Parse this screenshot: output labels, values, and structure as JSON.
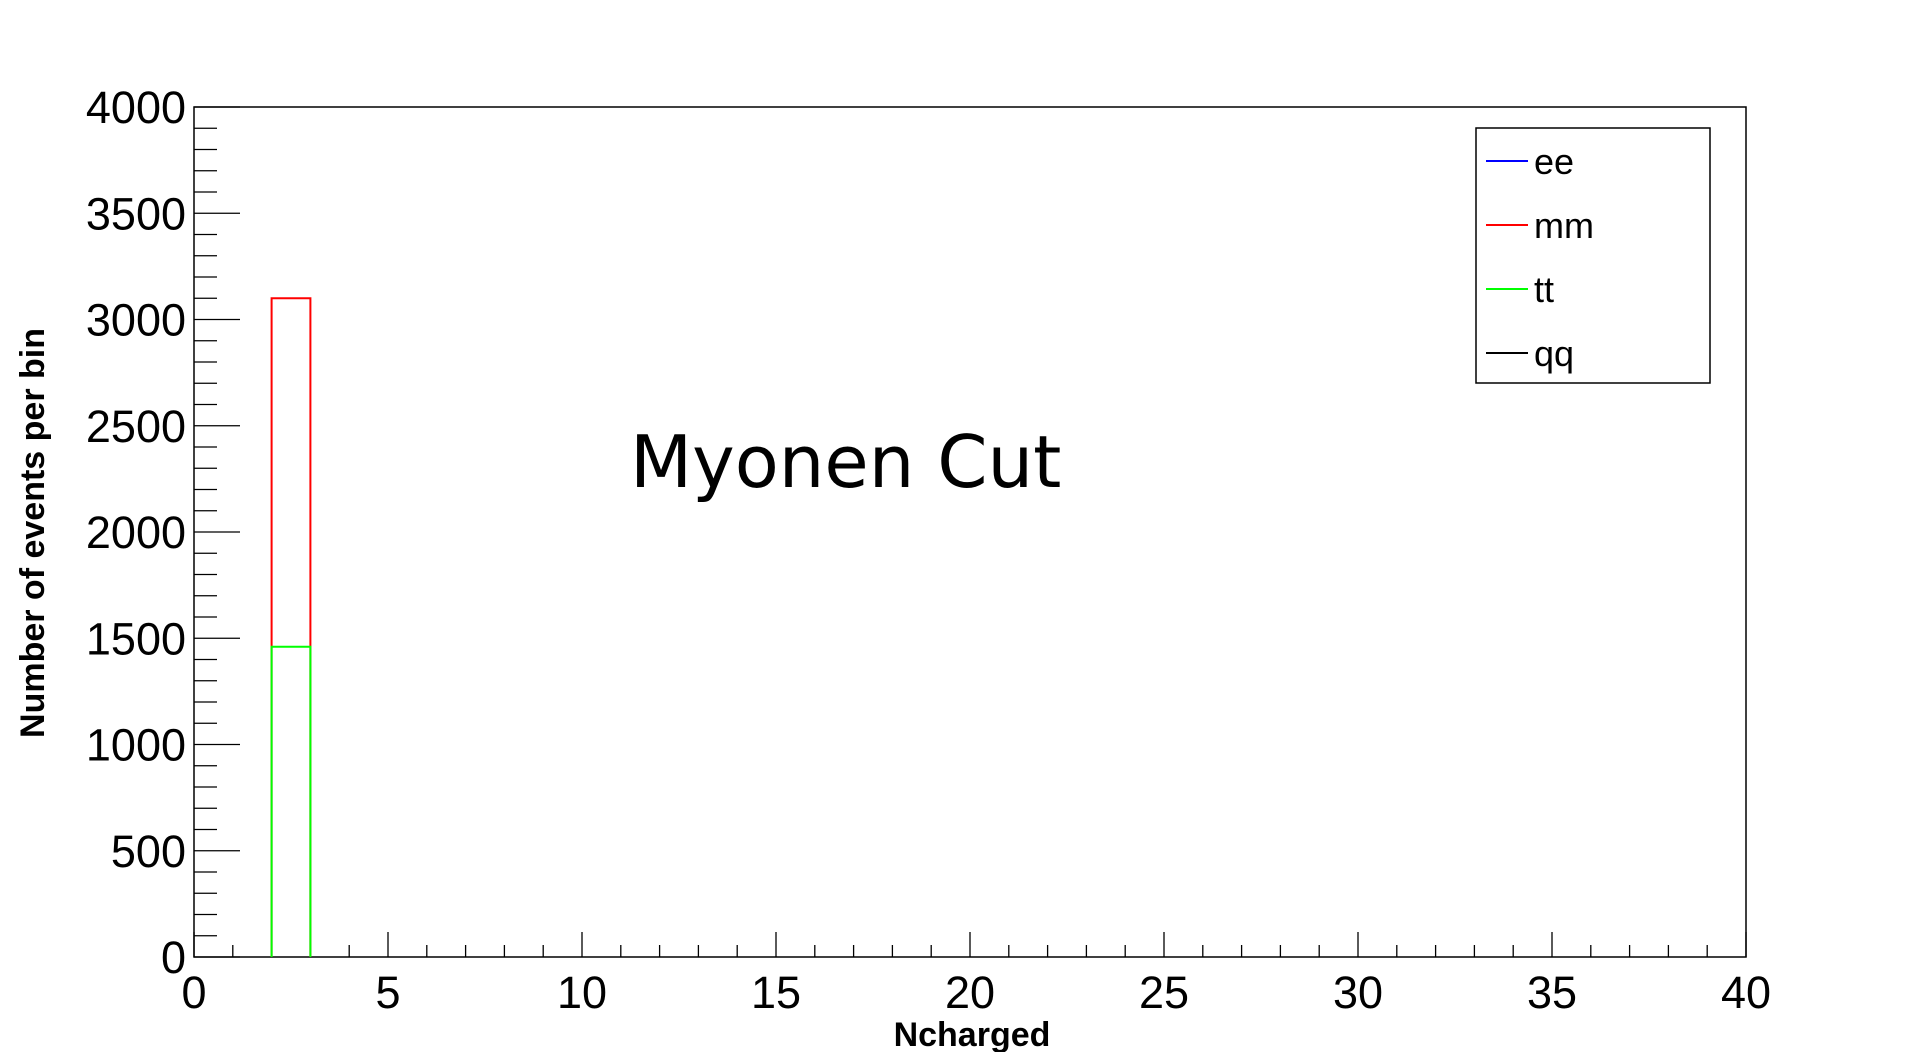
{
  "chart_data": {
    "type": "bar",
    "title": "",
    "xlabel": "Ncharged",
    "ylabel": "Number of events per bin",
    "xlim": [
      0,
      40
    ],
    "ylim": [
      0,
      4000
    ],
    "x_ticks": [
      "0",
      "5",
      "10",
      "15",
      "20",
      "25",
      "30",
      "35",
      "40"
    ],
    "y_ticks": [
      "0",
      "500",
      "1000",
      "1500",
      "2000",
      "2500",
      "3000",
      "3500",
      "4000"
    ],
    "bin_edges": [
      2,
      3
    ],
    "series": [
      {
        "name": "ee",
        "color": "#0000ff",
        "values": [
          0
        ]
      },
      {
        "name": "mm",
        "color": "#ff0000",
        "values": [
          3100
        ]
      },
      {
        "name": "tt",
        "color": "#00ff00",
        "values": [
          1460
        ]
      },
      {
        "name": "qq",
        "color": "#000000",
        "values": [
          0
        ]
      }
    ],
    "annotation": "Myonen Cut",
    "legend_position": "top-right",
    "grid": false
  }
}
